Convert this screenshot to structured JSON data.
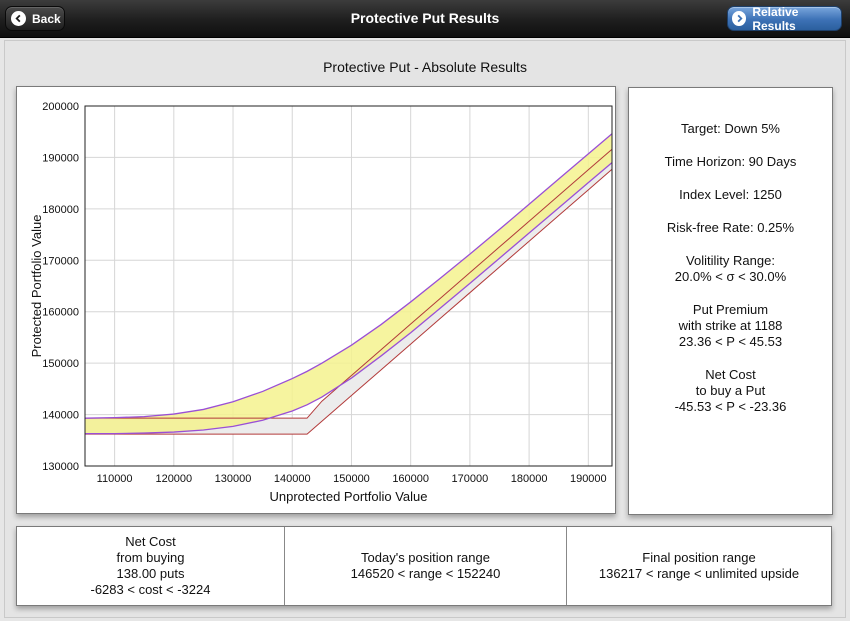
{
  "nav": {
    "title": "Protective Put Results",
    "back_label": "Back",
    "relative_label": "Relative Results"
  },
  "main_title": "Protective Put - Absolute Results",
  "info": {
    "target": "Target: Down 5%",
    "horizon": "Time Horizon: 90 Days",
    "index_level": "Index Level: 1250",
    "risk_free": "Risk-free Rate: 0.25%",
    "vol_line1": "Volitility Range:",
    "vol_line2": "20.0% < σ < 30.0%",
    "put_line1": "Put Premium",
    "put_line2": "with strike at 1188",
    "put_line3": "23.36 < P < 45.53",
    "net_line1": "Net Cost",
    "net_line2": "to buy a Put",
    "net_line3": "-45.53 < P < -23.36"
  },
  "bottom": {
    "cost_line1": "Net Cost",
    "cost_line2": "from buying",
    "cost_line3": "138.00 puts",
    "cost_line4": "-6283 < cost < -3224",
    "today_line1": "Today's position range",
    "today_line2": "146520 < range < 152240",
    "final_line1": "Final position range",
    "final_line2": "136217 < range < unlimited upside"
  },
  "colors": {
    "yellow_band": "#f5f28e",
    "gray_band": "#ececec",
    "purple_line": "#9a4fd6",
    "red_line": "#b23a3a",
    "accent": "#3d72b6"
  },
  "chart_data": {
    "type": "area",
    "title": "",
    "xlabel": "Unprotected Portfolio Value",
    "ylabel": "Protected Portfolio Value",
    "xlim": [
      105000,
      194000
    ],
    "ylim": [
      130000,
      200000
    ],
    "xticks": [
      "110000",
      "120000",
      "130000",
      "140000",
      "150000",
      "160000",
      "170000",
      "180000",
      "190000"
    ],
    "yticks": [
      "130000",
      "140000",
      "150000",
      "160000",
      "170000",
      "180000",
      "190000",
      "200000"
    ],
    "grid": true,
    "x": [
      105000,
      110000,
      115000,
      120000,
      125000,
      130000,
      135000,
      140000,
      142500,
      145000,
      150000,
      155000,
      160000,
      165000,
      170000,
      175000,
      180000,
      185000,
      190000,
      194000
    ],
    "series": [
      {
        "values": [
          139300,
          139400,
          139600,
          140100,
          141000,
          142500,
          144500,
          147000,
          148400,
          150000,
          153500,
          157500,
          161900,
          166500,
          171200,
          176000,
          180900,
          185800,
          190700,
          194600
        ]
      },
      {
        "values": [
          136300,
          136300,
          136400,
          136600,
          137000,
          137700,
          138900,
          140700,
          141900,
          143400,
          147100,
          151400,
          155900,
          160700,
          165500,
          170400,
          175300,
          180200,
          185100,
          189000
        ]
      },
      {
        "values": [
          139300,
          139300,
          139300,
          139300,
          139300,
          139300,
          139300,
          139300,
          139300,
          142600,
          147600,
          152600,
          157600,
          162600,
          167600,
          172600,
          177600,
          182600,
          187600,
          191600
        ]
      },
      {
        "values": [
          136200,
          136200,
          136200,
          136200,
          136200,
          136200,
          136200,
          136200,
          136200,
          138700,
          143700,
          148700,
          153700,
          158700,
          163700,
          168700,
          173700,
          178700,
          183700,
          187700
        ]
      }
    ]
  }
}
